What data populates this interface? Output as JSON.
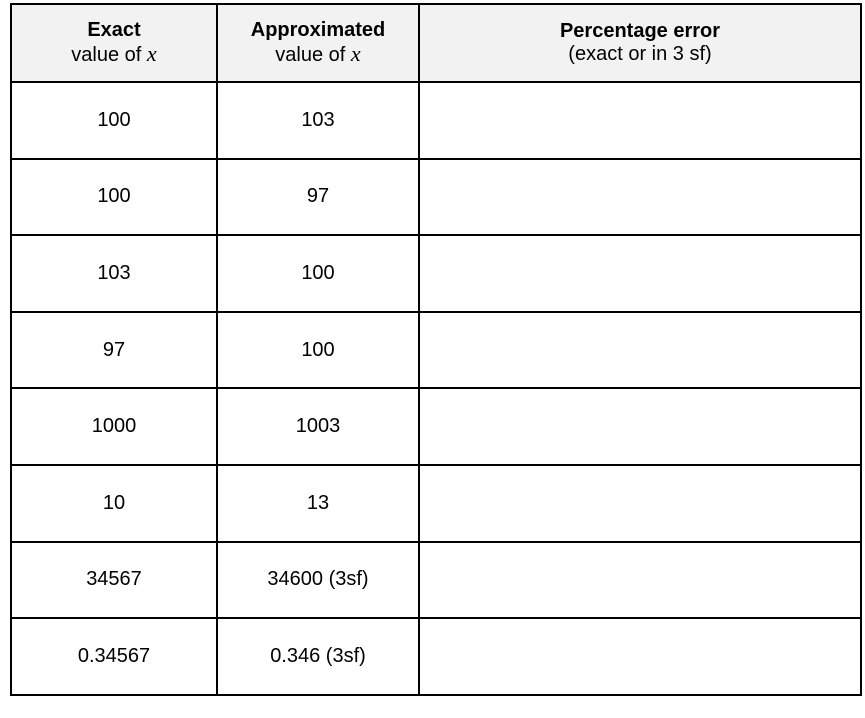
{
  "header": {
    "col1": {
      "title": "Exact",
      "subtitle": "value of",
      "var": "x"
    },
    "col2": {
      "title": "Approximated",
      "subtitle": "value of",
      "var": "x"
    },
    "col3": {
      "title": "Percentage error",
      "subtitle": "(exact or in 3 sf)"
    }
  },
  "rows": [
    {
      "exact": "100",
      "approx": "103",
      "error": ""
    },
    {
      "exact": "100",
      "approx": "97",
      "error": ""
    },
    {
      "exact": "103",
      "approx": "100",
      "error": ""
    },
    {
      "exact": "97",
      "approx": "100",
      "error": ""
    },
    {
      "exact": "1000",
      "approx": "1003",
      "error": ""
    },
    {
      "exact": "10",
      "approx": "13",
      "error": ""
    },
    {
      "exact": "34567",
      "approx": "34600 (3sf)",
      "error": ""
    },
    {
      "exact": "0.34567",
      "approx": "0.346 (3sf)",
      "error": ""
    }
  ]
}
